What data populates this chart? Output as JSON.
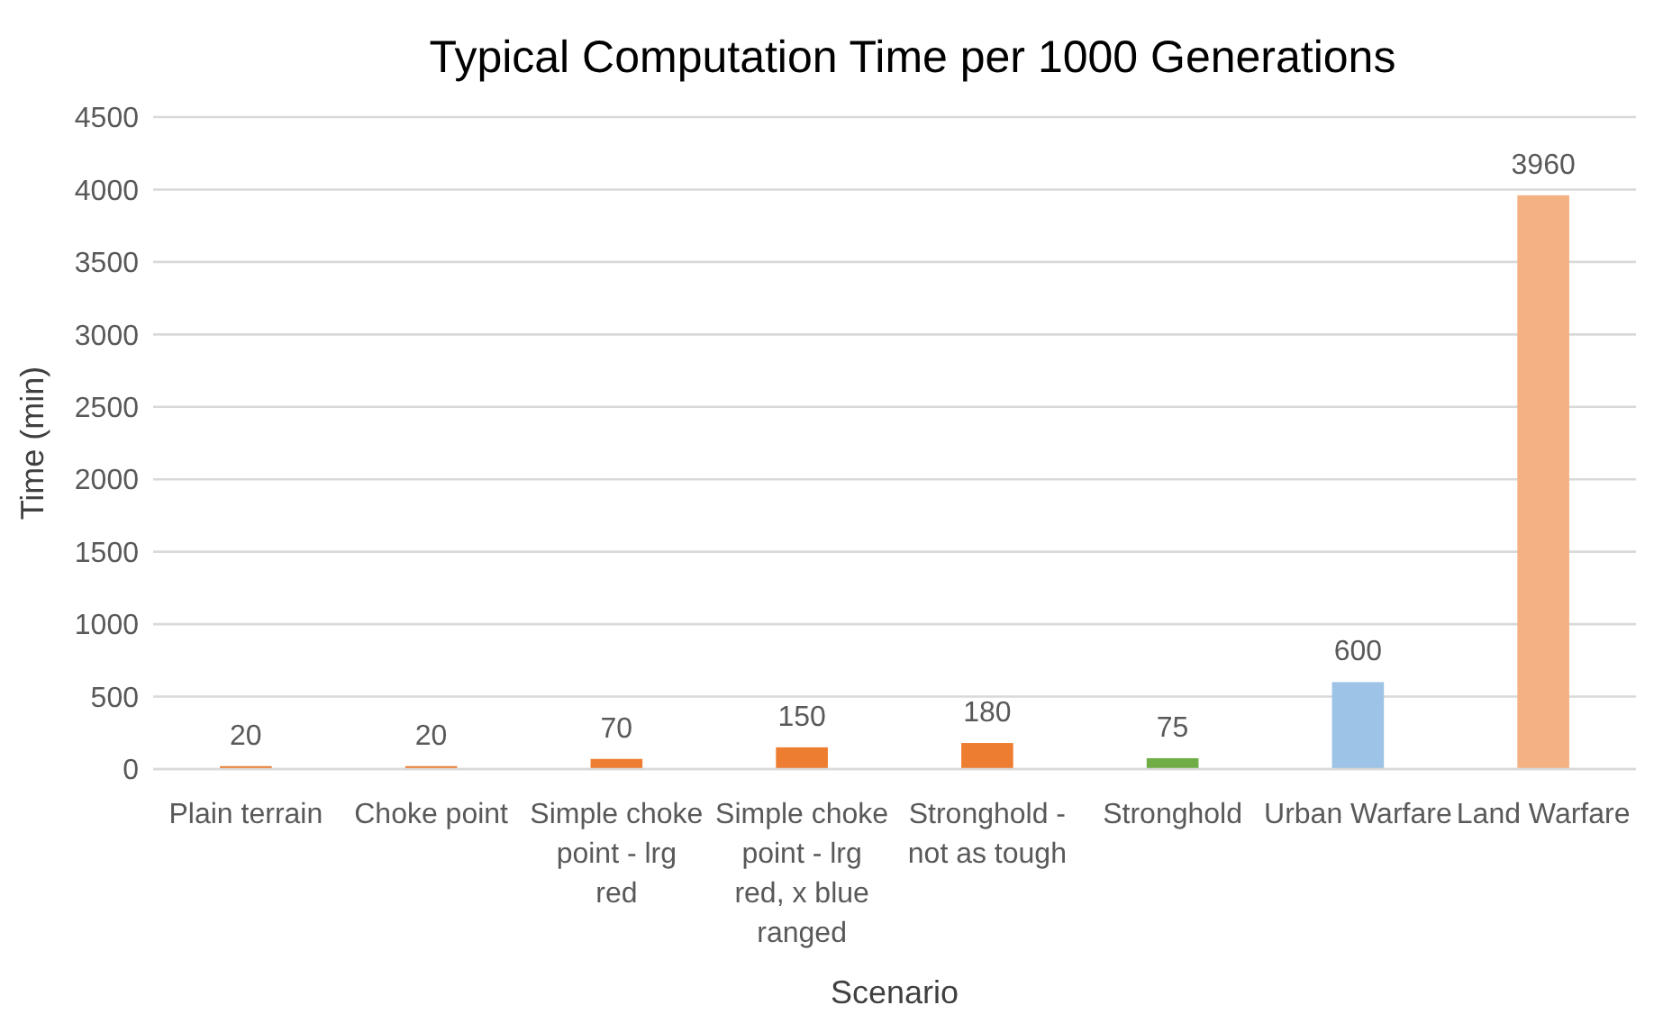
{
  "chart_data": {
    "type": "bar",
    "title": "Typical Computation Time per 1000 Generations",
    "xlabel": "Scenario",
    "ylabel": "Time (min)",
    "categories": [
      "Plain terrain",
      "Choke point",
      "Simple choke point - lrg red",
      "Simple choke point - lrg red, x blue ranged",
      "Stronghold - not as tough",
      "Stronghold",
      "Urban Warfare",
      "Land Warfare"
    ],
    "values": [
      20,
      20,
      70,
      150,
      180,
      75,
      600,
      3960
    ],
    "colors": [
      "#ed7d31",
      "#ed7d31",
      "#ed7d31",
      "#ed7d31",
      "#ed7d31",
      "#70ad47",
      "#9dc3e6",
      "#f4b183"
    ],
    "ylim": [
      0,
      4500
    ],
    "yticks": [
      0,
      500,
      1000,
      1500,
      2000,
      2500,
      3000,
      3500,
      4000,
      4500
    ],
    "grid": "y",
    "data_labels": true
  }
}
